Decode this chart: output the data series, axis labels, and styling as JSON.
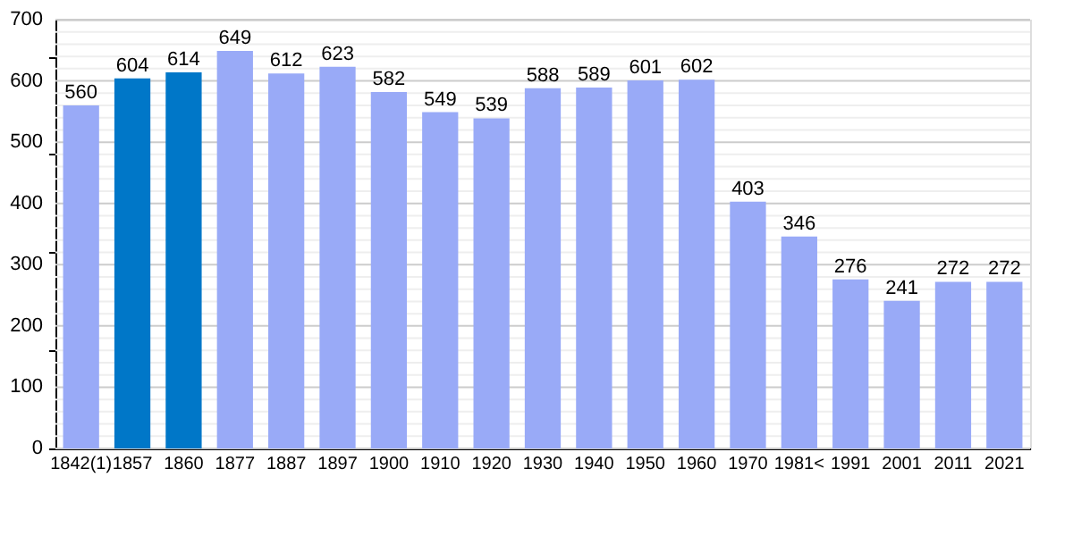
{
  "chart_data": {
    "type": "bar",
    "categories": [
      "1842(1)",
      "1857",
      "1860",
      "1877",
      "1887",
      "1897",
      "1900",
      "1910",
      "1920",
      "1930",
      "1940",
      "1950",
      "1960",
      "1970",
      "1981<",
      "1991",
      "2001",
      "2011",
      "2021"
    ],
    "values": [
      560,
      604,
      614,
      649,
      612,
      623,
      582,
      549,
      539,
      588,
      589,
      601,
      602,
      403,
      346,
      276,
      241,
      272,
      272
    ],
    "colors": [
      "#99aaf7",
      "#0077c8",
      "#0077c8",
      "#99aaf7",
      "#99aaf7",
      "#99aaf7",
      "#99aaf7",
      "#99aaf7",
      "#99aaf7",
      "#99aaf7",
      "#99aaf7",
      "#99aaf7",
      "#99aaf7",
      "#99aaf7",
      "#99aaf7",
      "#99aaf7",
      "#99aaf7",
      "#99aaf7",
      "#99aaf7"
    ],
    "data_labels": true,
    "ylim": [
      0,
      700
    ],
    "yticks": [
      0,
      {
        "value": 20,
        "label": null
      },
      {
        "value": 40,
        "label": null
      },
      {
        "value": 60,
        "label": null
      },
      {
        "value": 80,
        "label": null
      },
      100,
      {
        "value": 120,
        "label": null
      },
      {
        "value": 140,
        "label": null
      },
      {
        "value": 160,
        "label": null
      },
      {
        "value": 180,
        "label": null
      },
      200,
      {
        "value": 220,
        "label": null
      },
      {
        "value": 240,
        "label": null
      },
      {
        "value": 260,
        "label": null
      },
      {
        "value": 280,
        "label": null
      },
      300,
      {
        "value": 320,
        "label": null
      },
      {
        "value": 340,
        "label": null
      },
      {
        "value": 360,
        "label": null
      },
      {
        "value": 380,
        "label": null
      },
      400,
      {
        "value": 420,
        "label": null
      },
      {
        "value": 440,
        "label": null
      },
      {
        "value": 460,
        "label": null
      },
      {
        "value": 480,
        "label": null
      },
      500,
      {
        "value": 520,
        "label": null
      },
      {
        "value": 540,
        "label": null
      },
      {
        "value": 560,
        "label": null
      },
      {
        "value": 580,
        "label": null
      },
      600,
      {
        "value": 620,
        "label": null
      },
      {
        "value": 640,
        "label": null
      },
      {
        "value": 660,
        "label": null
      },
      {
        "value": 680,
        "label": null
      },
      700
    ],
    "grid": "y"
  }
}
